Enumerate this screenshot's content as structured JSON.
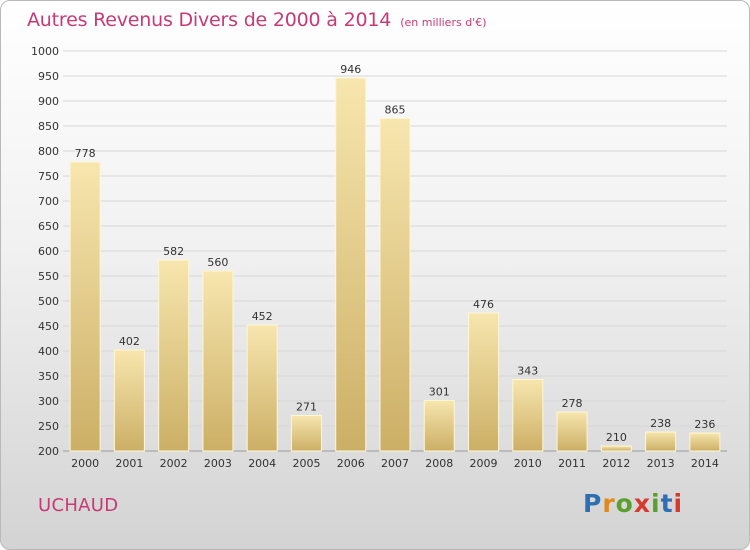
{
  "title": "Autres Revenus Divers de 2000 à 2014",
  "subtitle": "(en milliers d'€)",
  "commune": "UCHAUD",
  "logo": {
    "letters": [
      "P",
      "r",
      "o",
      "x",
      "i",
      "t",
      "i"
    ],
    "colors": [
      "#2d6fb5",
      "#e08a1e",
      "#5aa02c",
      "#d63a2c",
      "#5aa02c",
      "#2d6fb5",
      "#d63a2c"
    ]
  },
  "colors": {
    "accent": "#c83a75",
    "bar_light": "#f6e3a8",
    "bar_dark": "#cfb36a",
    "grid": "#d7d7d7"
  },
  "chart_data": {
    "type": "bar",
    "categories": [
      "2000",
      "2001",
      "2002",
      "2003",
      "2004",
      "2005",
      "2006",
      "2007",
      "2008",
      "2009",
      "2010",
      "2011",
      "2012",
      "2013",
      "2014"
    ],
    "values": [
      778,
      402,
      582,
      560,
      452,
      271,
      946,
      865,
      301,
      476,
      343,
      278,
      210,
      238,
      236
    ],
    "ylim": [
      200,
      1000
    ],
    "yticks": [
      200,
      250,
      300,
      350,
      400,
      450,
      500,
      550,
      600,
      650,
      700,
      750,
      800,
      850,
      900,
      950,
      1000
    ],
    "grid": true,
    "xlabel": "",
    "ylabel": ""
  }
}
